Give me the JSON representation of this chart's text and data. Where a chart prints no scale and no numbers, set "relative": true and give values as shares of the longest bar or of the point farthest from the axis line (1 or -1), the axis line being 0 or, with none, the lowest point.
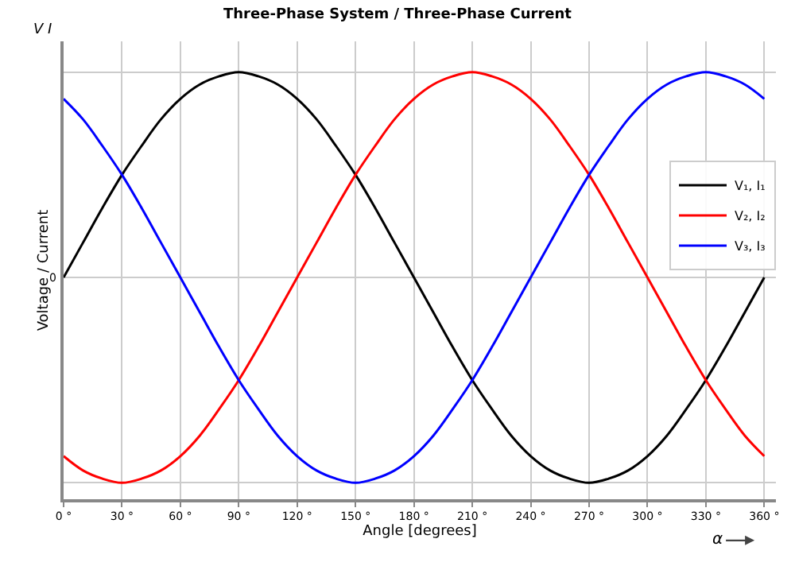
{
  "chart_data": {
    "type": "line",
    "title": "Three-Phase System / Three-Phase Current",
    "xlabel": "Angle [degrees]",
    "ylabel": "Voltage / Current",
    "relative": true,
    "x": [
      0,
      10,
      20,
      30,
      40,
      50,
      60,
      70,
      80,
      90,
      100,
      110,
      120,
      130,
      140,
      150,
      160,
      170,
      180,
      190,
      200,
      210,
      220,
      230,
      240,
      250,
      260,
      270,
      280,
      290,
      300,
      310,
      320,
      330,
      340,
      350,
      360
    ],
    "series": [
      {
        "name": "V₁, I₁",
        "color": "#000000",
        "values": [
          0,
          0.17,
          0.34,
          0.5,
          0.64,
          0.77,
          0.87,
          0.94,
          0.98,
          1,
          0.98,
          0.94,
          0.87,
          0.77,
          0.64,
          0.5,
          0.34,
          0.17,
          0,
          -0.17,
          -0.34,
          -0.5,
          -0.64,
          -0.77,
          -0.87,
          -0.94,
          -0.98,
          -1,
          -0.98,
          -0.94,
          -0.87,
          -0.77,
          -0.64,
          -0.5,
          -0.34,
          -0.17,
          0
        ]
      },
      {
        "name": "V₂, I₂",
        "color": "#ff0000",
        "values": [
          -0.87,
          -0.94,
          -0.98,
          -1,
          -0.98,
          -0.94,
          -0.87,
          -0.77,
          -0.64,
          -0.5,
          -0.34,
          -0.17,
          0,
          0.17,
          0.34,
          0.5,
          0.64,
          0.77,
          0.87,
          0.94,
          0.98,
          1,
          0.98,
          0.94,
          0.87,
          0.77,
          0.64,
          0.5,
          0.34,
          0.17,
          0,
          -0.17,
          -0.34,
          -0.5,
          -0.64,
          -0.77,
          -0.87
        ]
      },
      {
        "name": "V₃, I₃",
        "color": "#0000ff",
        "values": [
          0.87,
          0.77,
          0.64,
          0.5,
          0.34,
          0.17,
          0,
          -0.17,
          -0.34,
          -0.5,
          -0.64,
          -0.77,
          -0.87,
          -0.94,
          -0.98,
          -1,
          -0.98,
          -0.94,
          -0.87,
          -0.77,
          -0.64,
          -0.5,
          -0.34,
          -0.17,
          0,
          0.17,
          0.34,
          0.5,
          0.64,
          0.77,
          0.87,
          0.94,
          0.98,
          1,
          0.98,
          0.94,
          0.87
        ]
      }
    ],
    "xlim": [
      0,
      366
    ],
    "xticks": [
      {
        "value": 0,
        "label": "0 °"
      },
      {
        "value": 30,
        "label": "30 °"
      },
      {
        "value": 60,
        "label": "60 °"
      },
      {
        "value": 90,
        "label": "90 °"
      },
      {
        "value": 120,
        "label": "120 °"
      },
      {
        "value": 150,
        "label": "150 °"
      },
      {
        "value": 180,
        "label": "180 °"
      },
      {
        "value": 210,
        "label": "210 °"
      },
      {
        "value": 240,
        "label": "240 °"
      },
      {
        "value": 270,
        "label": "270 °"
      },
      {
        "value": 300,
        "label": "300 °"
      },
      {
        "value": 330,
        "label": "330 °"
      },
      {
        "value": 360,
        "label": "360 °"
      }
    ],
    "annotations": [
      "V I",
      "α",
      "0"
    ],
    "grid": true,
    "legend": "right",
    "marker": "none",
    "line_style": "solid"
  }
}
